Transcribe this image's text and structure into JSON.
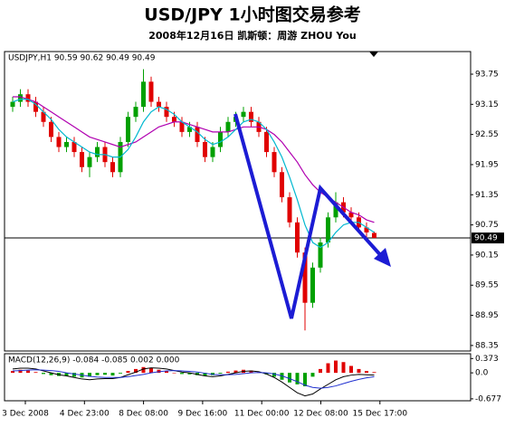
{
  "header": {
    "title": "USD/JPY 1小时图交易参考",
    "subtitle": "2008年12月16日  凯斯顿：周游 ZHOU You"
  },
  "chart_data": [
    {
      "type": "candlestick",
      "title": "USDJPY,H1 90.59 90.62 90.49 90.49",
      "ylim": [
        88.24,
        94.2
      ],
      "yticks": [
        93.75,
        93.15,
        92.55,
        91.95,
        91.35,
        90.75,
        90.15,
        89.55,
        88.95,
        88.35
      ],
      "current_price": 90.49,
      "up_color": "#00a000",
      "down_color": "#e00000",
      "open": [
        93.1,
        93.2,
        93.35,
        93.2,
        93.0,
        92.8,
        92.5,
        92.3,
        92.4,
        92.2,
        91.9,
        92.1,
        92.3,
        92.0,
        91.8,
        92.4,
        92.9,
        93.1,
        93.6,
        93.2,
        93.1,
        92.9,
        92.8,
        92.6,
        92.7,
        92.4,
        92.1,
        92.3,
        92.6,
        92.8,
        92.9,
        93.0,
        92.8,
        92.6,
        92.2,
        91.8,
        91.3,
        90.8,
        90.2,
        89.2,
        89.9,
        90.4,
        90.9,
        91.2,
        91.0,
        90.9,
        90.7,
        90.59
      ],
      "high": [
        93.3,
        93.45,
        93.45,
        93.3,
        93.1,
        92.9,
        92.6,
        92.5,
        92.5,
        92.3,
        92.2,
        92.4,
        92.4,
        92.1,
        92.5,
        93.0,
        93.2,
        93.85,
        93.7,
        93.3,
        93.2,
        93.0,
        92.9,
        92.8,
        92.8,
        92.5,
        92.4,
        92.7,
        92.9,
        93.0,
        93.1,
        93.1,
        92.9,
        92.7,
        92.3,
        91.9,
        91.4,
        90.9,
        90.3,
        90.0,
        90.5,
        91.0,
        91.4,
        91.3,
        91.1,
        91.0,
        90.8,
        90.62
      ],
      "low": [
        93.0,
        93.1,
        93.1,
        92.9,
        92.7,
        92.4,
        92.2,
        92.2,
        92.1,
        91.8,
        91.7,
        92.0,
        91.9,
        91.7,
        91.7,
        92.3,
        92.8,
        93.0,
        93.1,
        93.0,
        92.8,
        92.7,
        92.5,
        92.5,
        92.3,
        92.0,
        92.0,
        92.2,
        92.5,
        92.7,
        92.8,
        92.7,
        92.5,
        92.1,
        91.7,
        91.2,
        90.7,
        90.1,
        88.65,
        89.1,
        89.8,
        90.3,
        90.8,
        90.9,
        90.8,
        90.6,
        90.5,
        90.49
      ],
      "close": [
        93.2,
        93.35,
        93.2,
        93.0,
        92.8,
        92.5,
        92.3,
        92.4,
        92.2,
        91.9,
        92.1,
        92.3,
        92.0,
        91.8,
        92.4,
        92.9,
        93.1,
        93.6,
        93.2,
        93.1,
        92.9,
        92.8,
        92.6,
        92.7,
        92.4,
        92.1,
        92.3,
        92.6,
        92.8,
        92.9,
        93.0,
        92.8,
        92.6,
        92.2,
        91.8,
        91.3,
        90.8,
        90.2,
        89.2,
        89.9,
        90.4,
        90.9,
        91.2,
        91.0,
        90.9,
        90.7,
        90.6,
        90.49
      ],
      "series": [
        {
          "color": "#b000b0",
          "values": [
            93.3,
            93.3,
            93.25,
            93.2,
            93.1,
            93.0,
            92.9,
            92.8,
            92.7,
            92.6,
            92.5,
            92.45,
            92.4,
            92.35,
            92.3,
            92.35,
            92.4,
            92.5,
            92.6,
            92.7,
            92.75,
            92.8,
            92.8,
            92.75,
            92.7,
            92.65,
            92.6,
            92.6,
            92.6,
            92.65,
            92.7,
            92.7,
            92.7,
            92.65,
            92.55,
            92.4,
            92.2,
            92.0,
            91.75,
            91.55,
            91.4,
            91.3,
            91.2,
            91.1,
            91.0,
            90.95,
            90.85,
            90.8
          ]
        },
        {
          "color": "#00b8d0",
          "values": [
            93.2,
            93.25,
            93.25,
            93.15,
            93.0,
            92.85,
            92.65,
            92.5,
            92.4,
            92.3,
            92.2,
            92.15,
            92.15,
            92.1,
            92.1,
            92.25,
            92.5,
            92.8,
            93.0,
            93.1,
            93.05,
            92.95,
            92.8,
            92.7,
            92.6,
            92.45,
            92.35,
            92.4,
            92.5,
            92.65,
            92.8,
            92.85,
            92.8,
            92.65,
            92.4,
            92.1,
            91.7,
            91.25,
            90.75,
            90.4,
            90.3,
            90.4,
            90.6,
            90.75,
            90.8,
            90.8,
            90.7,
            90.6
          ]
        }
      ],
      "xtick_labels": [
        "3 Dec 2008",
        "4 Dec 23:00",
        "8 Dec 08:00",
        "9 Dec 16:00",
        "11 Dec 00:00",
        "12 Dec 08:00",
        "15 Dec 17:00"
      ]
    },
    {
      "type": "macd",
      "title": "MACD(12,26,9) -0.084 -0.085 0.002 0.000",
      "ylim": [
        -0.727,
        0.498
      ],
      "yticks": [
        0.373,
        {
          "value": 0,
          "label": "0.0"
        },
        -0.677
      ],
      "histogram": [
        0.05,
        0.08,
        0.06,
        0.02,
        -0.03,
        -0.06,
        -0.08,
        -0.08,
        -0.1,
        -0.12,
        -0.1,
        -0.06,
        -0.05,
        -0.07,
        -0.02,
        0.05,
        0.1,
        0.15,
        0.12,
        0.08,
        0.04,
        0.0,
        -0.03,
        -0.04,
        -0.06,
        -0.08,
        -0.06,
        -0.02,
        0.03,
        0.06,
        0.08,
        0.06,
        0.02,
        -0.04,
        -0.1,
        -0.18,
        -0.25,
        -0.3,
        -0.35,
        -0.1,
        0.1,
        0.25,
        0.32,
        0.28,
        0.18,
        0.1,
        0.05,
        0.02
      ],
      "up_color": "#e00000",
      "down_color": "#00a000",
      "series": [
        {
          "color": "#000000",
          "values": [
            0.1,
            0.12,
            0.12,
            0.1,
            0.05,
            0.0,
            -0.05,
            -0.08,
            -0.12,
            -0.16,
            -0.18,
            -0.16,
            -0.15,
            -0.15,
            -0.12,
            -0.05,
            0.02,
            0.1,
            0.13,
            0.12,
            0.1,
            0.06,
            0.02,
            0.0,
            -0.04,
            -0.08,
            -0.1,
            -0.08,
            -0.04,
            0.0,
            0.04,
            0.05,
            0.03,
            -0.03,
            -0.12,
            -0.24,
            -0.38,
            -0.52,
            -0.6,
            -0.55,
            -0.42,
            -0.3,
            -0.18,
            -0.1,
            -0.06,
            -0.04,
            -0.05,
            -0.06
          ]
        },
        {
          "color": "#2030d0",
          "values": [
            0.05,
            0.06,
            0.07,
            0.08,
            0.07,
            0.06,
            0.04,
            0.0,
            -0.03,
            -0.06,
            -0.09,
            -0.11,
            -0.12,
            -0.12,
            -0.12,
            -0.1,
            -0.07,
            -0.04,
            0.0,
            0.03,
            0.05,
            0.06,
            0.05,
            0.04,
            0.02,
            -0.01,
            -0.04,
            -0.05,
            -0.05,
            -0.04,
            -0.02,
            0.0,
            0.01,
            0.0,
            -0.03,
            -0.08,
            -0.15,
            -0.23,
            -0.32,
            -0.38,
            -0.4,
            -0.38,
            -0.34,
            -0.28,
            -0.22,
            -0.17,
            -0.13,
            -0.1
          ]
        }
      ]
    }
  ]
}
